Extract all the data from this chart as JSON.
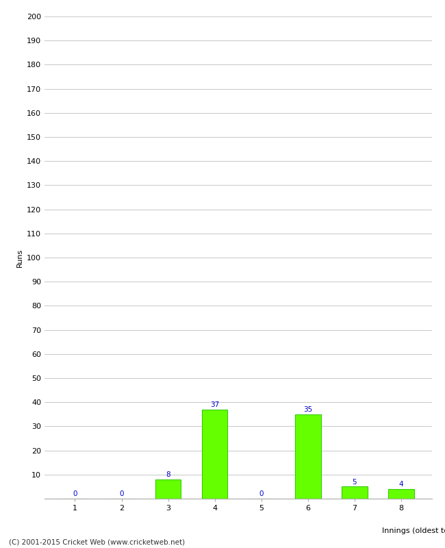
{
  "categories": [
    "1",
    "2",
    "3",
    "4",
    "5",
    "6",
    "7",
    "8"
  ],
  "values": [
    0,
    0,
    8,
    37,
    0,
    35,
    5,
    4
  ],
  "bar_color": "#66ff00",
  "bar_edge_color": "#33cc00",
  "label_color": "#0000cc",
  "xlabel": "Innings (oldest to newest)",
  "ylabel": "Runs",
  "ylim": [
    0,
    200
  ],
  "yticks": [
    0,
    10,
    20,
    30,
    40,
    50,
    60,
    70,
    80,
    90,
    100,
    110,
    120,
    130,
    140,
    150,
    160,
    170,
    180,
    190,
    200
  ],
  "footer": "(C) 2001-2015 Cricket Web (www.cricketweb.net)",
  "background_color": "#ffffff",
  "grid_color": "#cccccc",
  "label_fontsize": 7.5,
  "axis_tick_fontsize": 8,
  "axis_label_fontsize": 8,
  "footer_fontsize": 7.5,
  "bar_width": 0.55
}
